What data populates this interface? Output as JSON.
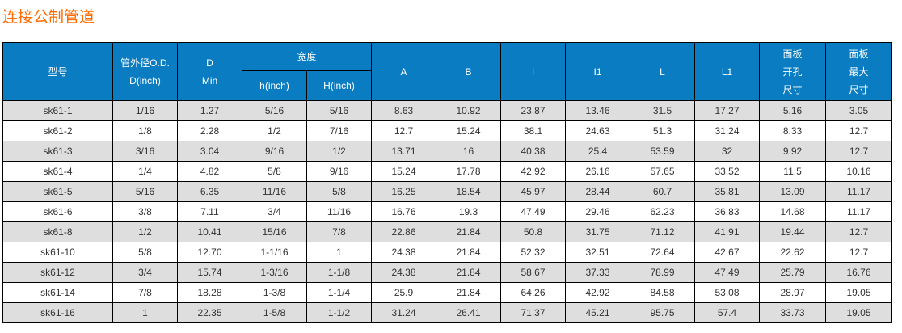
{
  "title": "连接公制管道",
  "headers": {
    "model": "型号",
    "od_line1": "管外径O.D.",
    "od_line2": "D(inch)",
    "d_line1": "D",
    "d_line2": "Min",
    "width": "宽度",
    "h": "h(inch)",
    "H": "H(inch)",
    "A": "A",
    "B": "B",
    "I": "I",
    "I1": "I1",
    "L": "L",
    "L1": "L1",
    "panel_hole": [
      "面板",
      "开孔",
      "尺寸"
    ],
    "panel_max": [
      "面板",
      "最大",
      "尺寸"
    ]
  },
  "rows": [
    [
      "sk61-1",
      "1/16",
      "1.27",
      "5/16",
      "5/16",
      "8.63",
      "10.92",
      "23.87",
      "13.46",
      "31.5",
      "17.27",
      "5.16",
      "3.05"
    ],
    [
      "sk61-2",
      "1/8",
      "2.28",
      "1/2",
      "7/16",
      "12.7",
      "15.24",
      "38.1",
      "24.63",
      "51.3",
      "31.24",
      "8.33",
      "12.7"
    ],
    [
      "sk61-3",
      "3/16",
      "3.04",
      "9/16",
      "1/2",
      "13.71",
      "16",
      "40.38",
      "25.4",
      "53.59",
      "32",
      "9.92",
      "12.7"
    ],
    [
      "sk61-4",
      "1/4",
      "4.82",
      "5/8",
      "9/16",
      "15.24",
      "17.78",
      "42.92",
      "26.16",
      "57.65",
      "33.52",
      "11.5",
      "10.16"
    ],
    [
      "sk61-5",
      "5/16",
      "6.35",
      "11/16",
      "5/8",
      "16.25",
      "18.54",
      "45.97",
      "28.44",
      "60.7",
      "35.81",
      "13.09",
      "11.17"
    ],
    [
      "sk61-6",
      "3/8",
      "7.11",
      "3/4",
      "11/16",
      "16.76",
      "19.3",
      "47.49",
      "29.46",
      "62.23",
      "36.83",
      "14.68",
      "11.17"
    ],
    [
      "sk61-8",
      "1/2",
      "10.41",
      "15/16",
      "7/8",
      "22.86",
      "21.84",
      "50.8",
      "31.75",
      "71.12",
      "41.91",
      "19.44",
      "12.7"
    ],
    [
      "sk61-10",
      "5/8",
      "12.70",
      "1-1/16",
      "1",
      "24.38",
      "21.84",
      "52.32",
      "32.51",
      "72.64",
      "42.67",
      "22.62",
      "12.7"
    ],
    [
      "sk61-12",
      "3/4",
      "15.74",
      "1-3/16",
      "1-1/8",
      "24.38",
      "21.84",
      "58.67",
      "37.33",
      "78.99",
      "47.49",
      "25.79",
      "16.76"
    ],
    [
      "sk61-14",
      "7/8",
      "18.28",
      "1-3/8",
      "1-1/4",
      "25.9",
      "21.84",
      "64.26",
      "42.92",
      "84.58",
      "53.08",
      "28.97",
      "19.05"
    ],
    [
      "sk61-16",
      "1",
      "22.35",
      "1-5/8",
      "1-1/2",
      "31.24",
      "26.41",
      "71.37",
      "45.21",
      "95.75",
      "57.4",
      "33.73",
      "19.05"
    ]
  ],
  "colors": {
    "title": "#ff6a00",
    "header_bg": "#0a7cc1",
    "row_alt": "#dedede"
  }
}
